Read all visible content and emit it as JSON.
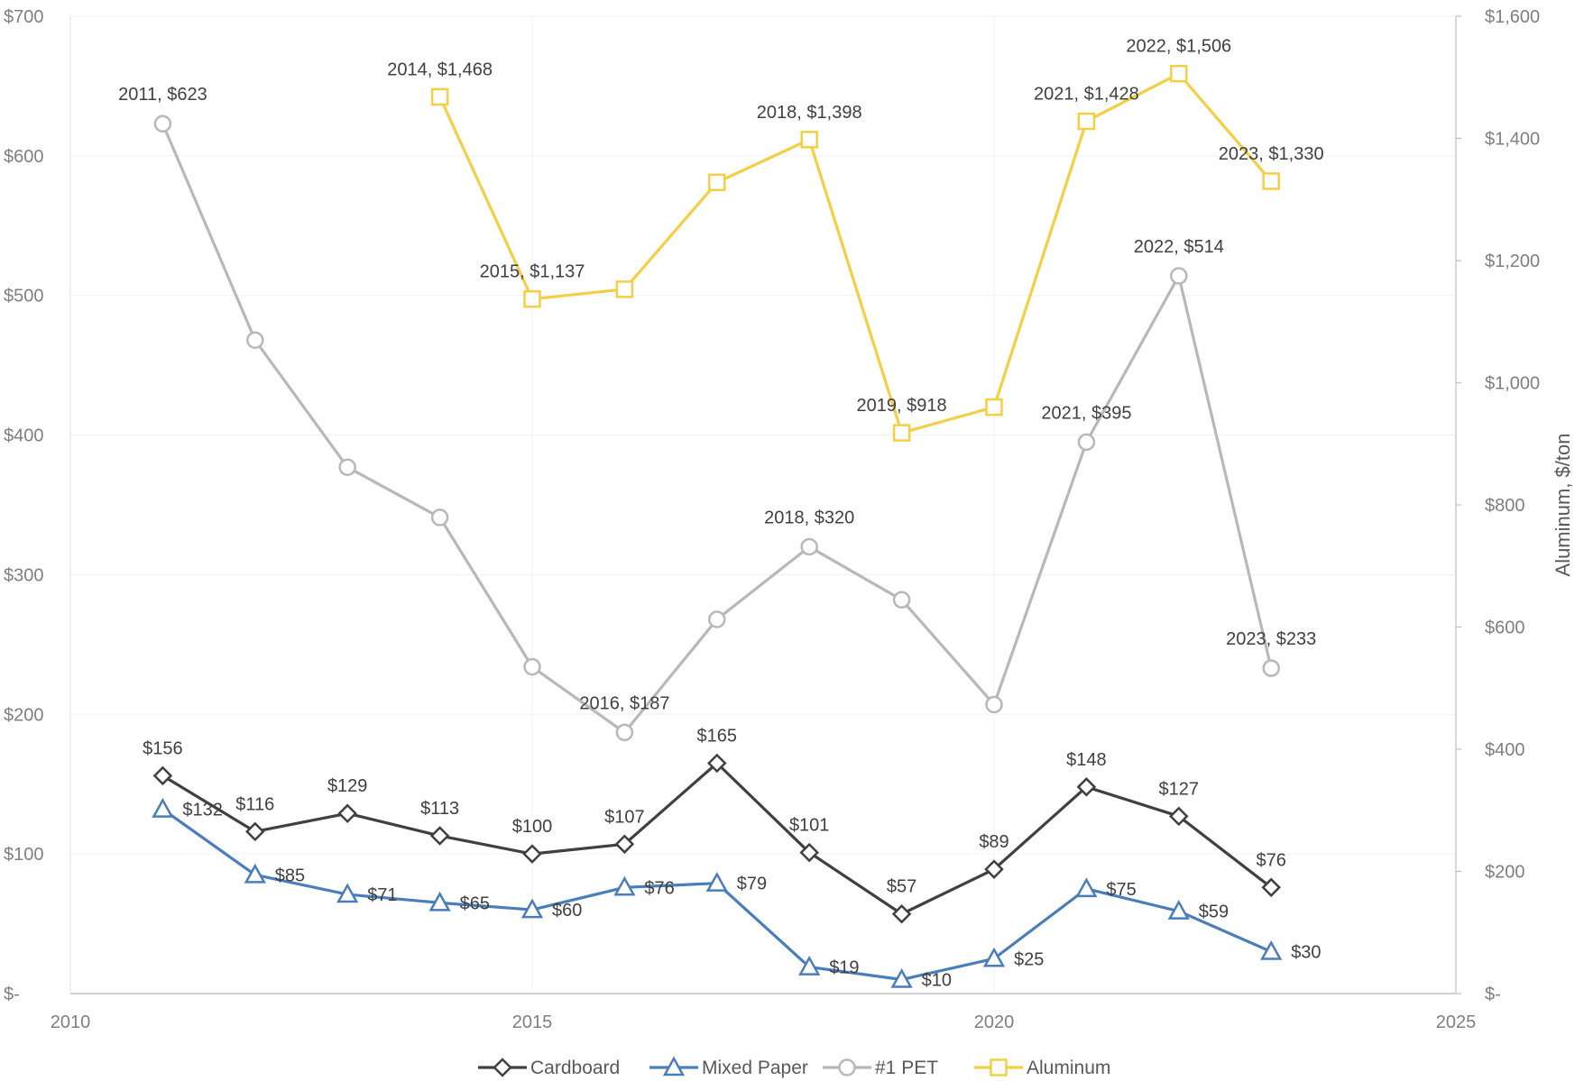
{
  "chart_data": {
    "type": "line",
    "title": "",
    "xlabel": "",
    "ylabel": "",
    "y2label": "Aluminum, $/ton",
    "xlim": [
      2010,
      2025
    ],
    "ylim": [
      0,
      700
    ],
    "y2lim": [
      0,
      1600
    ],
    "x_ticks": [
      "2010",
      "2015",
      "2020",
      "2025"
    ],
    "y_ticks": [
      "$-",
      "$100",
      "$200",
      "$300",
      "$400",
      "$500",
      "$600",
      "$700"
    ],
    "y2_ticks": [
      "$-",
      "$200",
      "$400",
      "$600",
      "$800",
      "$1,000",
      "$1,200",
      "$1,400",
      "$1,600"
    ],
    "legend_position": "bottom",
    "grid": true,
    "series": [
      {
        "name": "Cardboard",
        "axis": "left",
        "color": "#404040",
        "marker": "diamond",
        "x": [
          2011,
          2012,
          2013,
          2014,
          2015,
          2016,
          2017,
          2018,
          2019,
          2020,
          2021,
          2022,
          2023
        ],
        "values": [
          156,
          116,
          129,
          113,
          100,
          107,
          165,
          101,
          57,
          89,
          148,
          127,
          76
        ],
        "labels": [
          "$156",
          "$116",
          "$129",
          "$113",
          "$100",
          "$107",
          "$165",
          "$101",
          "$57",
          "$89",
          "$148",
          "$127",
          "$76"
        ]
      },
      {
        "name": "Mixed Paper",
        "axis": "left",
        "color": "#4a7ebb",
        "marker": "triangle",
        "x": [
          2011,
          2012,
          2013,
          2014,
          2015,
          2016,
          2017,
          2018,
          2019,
          2020,
          2021,
          2022,
          2023
        ],
        "values": [
          132,
          85,
          71,
          65,
          60,
          76,
          79,
          19,
          10,
          25,
          75,
          59,
          30
        ],
        "labels": [
          "$132",
          "$85",
          "$71",
          "$65",
          "$60",
          "$76",
          "$79",
          "$19",
          "$10",
          "$25",
          "$75",
          "$59",
          "$30"
        ]
      },
      {
        "name": "#1 PET",
        "axis": "left",
        "color": "#b8b8b8",
        "marker": "circle",
        "x": [
          2011,
          2012,
          2013,
          2014,
          2015,
          2016,
          2017,
          2018,
          2019,
          2020,
          2021,
          2022,
          2023
        ],
        "values": [
          623,
          468,
          377,
          341,
          234,
          187,
          268,
          320,
          282,
          207,
          395,
          514,
          233
        ],
        "labels": [
          "2011, $623",
          "",
          "",
          "",
          "",
          "2016, $187",
          "",
          "2018, $320",
          "",
          "",
          "2021, $395",
          "2022, $514",
          "2023, $233"
        ]
      },
      {
        "name": "Aluminum",
        "axis": "right",
        "color": "#f3cf45",
        "marker": "square",
        "x": [
          2014,
          2015,
          2016,
          2017,
          2018,
          2019,
          2020,
          2021,
          2022,
          2023
        ],
        "values": [
          1468,
          1137,
          1153,
          1328,
          1398,
          918,
          960,
          1428,
          1506,
          1330
        ],
        "labels": [
          "2014, $1,468",
          "2015, $1,137",
          "",
          "",
          "2018, $1,398",
          "2019, $918",
          "",
          "2021, $1,428",
          "2022, $1,506",
          "2023, $1,330"
        ]
      }
    ]
  }
}
